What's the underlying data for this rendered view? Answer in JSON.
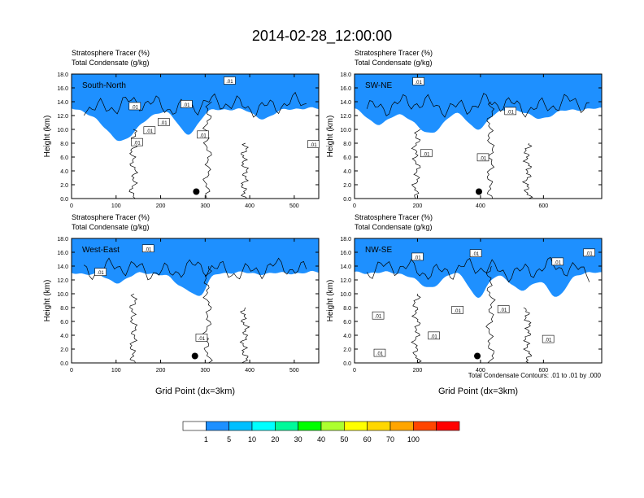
{
  "title": "2014-02-28_12:00:00",
  "footnote": "Total Condensate Contours: .01 to .01 by .000",
  "colorbar": {
    "colors": [
      "#ffffff",
      "#1e90ff",
      "#00bfff",
      "#00ffff",
      "#00fa9a",
      "#00ff00",
      "#adff2f",
      "#ffff00",
      "#ffd700",
      "#ffa500",
      "#ff4500",
      "#ff0000"
    ],
    "labels": [
      "1",
      "5",
      "10",
      "20",
      "30",
      "40",
      "50",
      "60",
      "70",
      "100"
    ]
  },
  "chart_data": [
    {
      "type": "contour",
      "label": "South-North",
      "header1": "Stratosphere Tracer   (%)",
      "header2": "Total Condensate   (g/kg)",
      "ylabel": "Height (km)",
      "xlabel": "",
      "xlim": [
        0,
        555
      ],
      "ylim": [
        0,
        18
      ],
      "xticks": [
        "0",
        "100",
        "200",
        "300",
        "400",
        "500"
      ],
      "yticks": [
        "0.0",
        "2.0",
        "4.0",
        "6.0",
        "8.0",
        "10.0",
        "12.0",
        "14.0",
        "16.0",
        "18.0"
      ],
      "marker": {
        "x": 280,
        "y": 1.0
      },
      "contour_labels": [
        {
          "x": 355,
          "y": 17.0,
          "text": ".01"
        },
        {
          "x": 142,
          "y": 13.3,
          "text": ".01"
        },
        {
          "x": 258,
          "y": 13.6,
          "text": ".01"
        },
        {
          "x": 207,
          "y": 11.0,
          "text": ".01"
        },
        {
          "x": 175,
          "y": 9.8,
          "text": ".01"
        },
        {
          "x": 147,
          "y": 8.1,
          "text": ".01"
        },
        {
          "x": 295,
          "y": 9.2,
          "text": ".01"
        },
        {
          "x": 543,
          "y": 7.8,
          "text": ".01"
        }
      ]
    },
    {
      "type": "contour",
      "label": "SW-NE",
      "header1": "Stratosphere Tracer   (%)",
      "header2": "Total Condensate   (g/kg)",
      "ylabel": "Height (km)",
      "xlabel": "",
      "xlim": [
        0,
        785
      ],
      "ylim": [
        0,
        18
      ],
      "xticks": [
        "0",
        "200",
        "400",
        "600"
      ],
      "yticks": [
        "0.0",
        "2.0",
        "4.0",
        "6.0",
        "8.0",
        "10.0",
        "12.0",
        "14.0",
        "16.0",
        "18.0"
      ],
      "marker": {
        "x": 395,
        "y": 1.0
      },
      "contour_labels": [
        {
          "x": 203,
          "y": 16.9,
          "text": ".01"
        },
        {
          "x": 495,
          "y": 12.6,
          "text": ".01"
        },
        {
          "x": 228,
          "y": 6.5,
          "text": ".01"
        },
        {
          "x": 408,
          "y": 5.9,
          "text": ".01"
        }
      ]
    },
    {
      "type": "contour",
      "label": "West-East",
      "header1": "Stratosphere Tracer   (%)",
      "header2": "Total Condensate   (g/kg)",
      "ylabel": "Height (km)",
      "xlabel": "Grid Point (dx=3km)",
      "xlim": [
        0,
        555
      ],
      "ylim": [
        0,
        18
      ],
      "xticks": [
        "0",
        "100",
        "200",
        "300",
        "400",
        "500"
      ],
      "yticks": [
        "0.0",
        "2.0",
        "4.0",
        "6.0",
        "8.0",
        "10.0",
        "12.0",
        "14.0",
        "16.0",
        "18.0"
      ],
      "marker": {
        "x": 277,
        "y": 1.0
      },
      "contour_labels": [
        {
          "x": 172,
          "y": 16.5,
          "text": ".01"
        },
        {
          "x": 65,
          "y": 13.1,
          "text": ".01"
        },
        {
          "x": 292,
          "y": 3.6,
          "text": ".01"
        }
      ]
    },
    {
      "type": "contour",
      "label": "NW-SE",
      "header1": "Stratosphere Tracer   (%)",
      "header2": "Total Condensate   (g/kg)",
      "ylabel": "Height (km)",
      "xlabel": "Grid Point (dx=3km)",
      "xlim": [
        0,
        785
      ],
      "ylim": [
        0,
        18
      ],
      "xticks": [
        "0",
        "200",
        "400",
        "600"
      ],
      "yticks": [
        "0.0",
        "2.0",
        "4.0",
        "6.0",
        "8.0",
        "10.0",
        "12.0",
        "14.0",
        "16.0",
        "18.0"
      ],
      "marker": {
        "x": 390,
        "y": 1.0
      },
      "contour_labels": [
        {
          "x": 200,
          "y": 15.3,
          "text": ".01"
        },
        {
          "x": 385,
          "y": 15.8,
          "text": ".01"
        },
        {
          "x": 645,
          "y": 14.6,
          "text": ".01"
        },
        {
          "x": 745,
          "y": 15.9,
          "text": ".01"
        },
        {
          "x": 75,
          "y": 6.8,
          "text": ".01"
        },
        {
          "x": 327,
          "y": 7.6,
          "text": ".01"
        },
        {
          "x": 473,
          "y": 7.7,
          "text": ".01"
        },
        {
          "x": 252,
          "y": 3.9,
          "text": ".01"
        },
        {
          "x": 80,
          "y": 1.4,
          "text": ".01"
        },
        {
          "x": 615,
          "y": 3.4,
          "text": ".01"
        }
      ]
    }
  ]
}
